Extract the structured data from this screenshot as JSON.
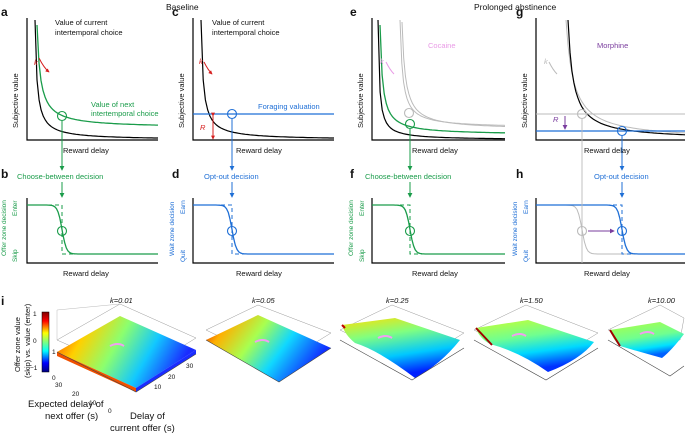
{
  "headers": {
    "baseline": "Baseline",
    "prolonged": "Prolonged abstinence"
  },
  "panel_labels": {
    "a": "a",
    "b": "b",
    "c": "c",
    "d": "d",
    "e": "e",
    "f": "f",
    "g": "g",
    "h": "h",
    "i": "i"
  },
  "top_panels": {
    "ylabel": "Subjective value",
    "xlabel": "Reward delay",
    "k_symbol": "k",
    "r_symbol": "R",
    "a_curve_line1": "Value of current",
    "a_curve_line2": "intertemporal choice",
    "a_next_line1": "Value of next",
    "a_next_line2": "intertemporal choice",
    "c_curve_line1": "Value of current",
    "c_curve_line2": "intertemporal choice",
    "c_foraging": "Foraging valuation",
    "e_drug": "Cocaine",
    "g_drug": "Morphine"
  },
  "connectors": {
    "choose_between": "Choose-between decision",
    "opt_out": "Opt-out decision"
  },
  "bottom_panels": {
    "xlabel": "Reward delay",
    "offer_ylabel": "Offer zone decision",
    "wait_ylabel": "Wait zone decision",
    "enter": "Enter",
    "skip": "Skip",
    "earn": "Earn",
    "quit": "Quit"
  },
  "panel_i": {
    "zlabel_line1": "Offer zone value",
    "zlabel_line2": "(skip) vs. value (enter)",
    "colorbar_ticks": [
      "1",
      "0",
      "−1"
    ],
    "axis_ticks_left": [
      "30",
      "20",
      "10",
      "0"
    ],
    "axis_ticks_right": [
      "10",
      "20",
      "30"
    ],
    "x1_line1": "Expected delay of",
    "x1_line2": "next offer (s)",
    "x2_line1": "Delay of",
    "x2_line2": "current offer (s)",
    "k_values": [
      "k=0.01",
      "k=0.05",
      "k=0.25",
      "k=1.50",
      "k=10.00"
    ]
  },
  "colors": {
    "green": "#1a9c4a",
    "blue": "#1f6fd6",
    "red": "#d61f1f",
    "pink": "#e99ae6",
    "purple": "#7a3d9e",
    "gray": "#bbbbbb"
  }
}
